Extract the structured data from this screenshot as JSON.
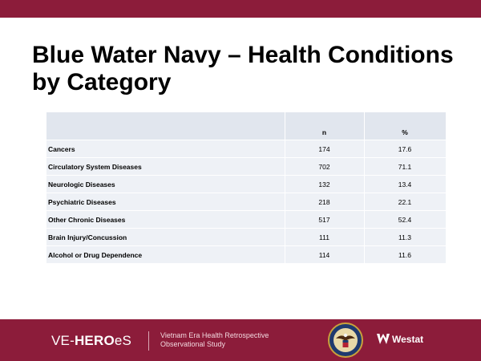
{
  "slide": {
    "title": "Blue Water Navy – Health Conditions by Category"
  },
  "table": {
    "headers": [
      "",
      "n",
      "%"
    ],
    "rows": [
      {
        "label": "Cancers",
        "n": "174",
        "pct": "17.6"
      },
      {
        "label": "Circulatory System Diseases",
        "n": "702",
        "pct": "71.1"
      },
      {
        "label": "Neurologic Diseases",
        "n": "132",
        "pct": "13.4"
      },
      {
        "label": "Psychiatric Diseases",
        "n": "218",
        "pct": "22.1"
      },
      {
        "label": "Other Chronic Diseases",
        "n": "517",
        "pct": "52.4"
      },
      {
        "label": "Brain Injury/Concussion",
        "n": "111",
        "pct": "11.3"
      },
      {
        "label": "Alcohol or Drug Dependence",
        "n": "114",
        "pct": "11.6"
      }
    ]
  },
  "footer": {
    "logo_prefix": "VE-",
    "logo_bold": "HERO",
    "logo_suffix": "eS",
    "study_line1": "Vietnam Era Health Retrospective",
    "study_line2": "Observational Study",
    "partner": "Westat"
  },
  "colors": {
    "brand": "#8c1c3a",
    "table_header": "#e1e6ee",
    "table_row": "#eef1f6"
  }
}
